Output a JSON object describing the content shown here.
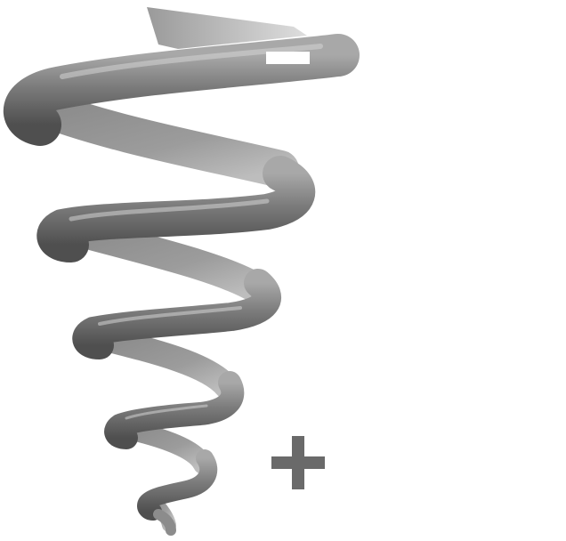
{
  "figure": {
    "subject": "helix-coil",
    "background_color": "#ffffff",
    "coil_colors": {
      "shadow": "#4a4a4a",
      "base": "#7c7c7c",
      "mid": "#9a9a9a",
      "highlight": "#c8c8c8"
    },
    "markers": [
      {
        "name": "minus-sign",
        "symbol": "−",
        "color": "#ffffff"
      },
      {
        "name": "plus-sign",
        "symbol": "+",
        "color": "#6a6a6a"
      }
    ]
  }
}
